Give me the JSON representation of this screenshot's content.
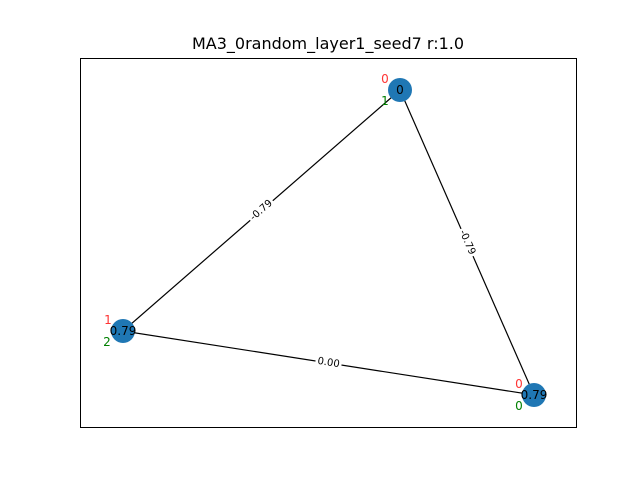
{
  "title": "MA3_0random_layer1_seed7  r:1.0",
  "colors": {
    "node": "#1f77b4",
    "edge": "#000000",
    "top_annotation": "#ff3333",
    "bottom_annotation": "#008000",
    "frame": "#000000"
  },
  "graph": {
    "nodes": [
      {
        "id": "n_top",
        "value_label": "0",
        "top_annotation": "0",
        "bottom_annotation": "1"
      },
      {
        "id": "n_left",
        "value_label": "0.79",
        "top_annotation": "1",
        "bottom_annotation": "2"
      },
      {
        "id": "n_right",
        "value_label": "0.79",
        "top_annotation": "0",
        "bottom_annotation": "0"
      }
    ],
    "edges": [
      {
        "source": "n_top",
        "target": "n_left",
        "label": "-0.79"
      },
      {
        "source": "n_top",
        "target": "n_right",
        "label": "-0.79"
      },
      {
        "source": "n_left",
        "target": "n_right",
        "label": "0.00"
      }
    ]
  }
}
